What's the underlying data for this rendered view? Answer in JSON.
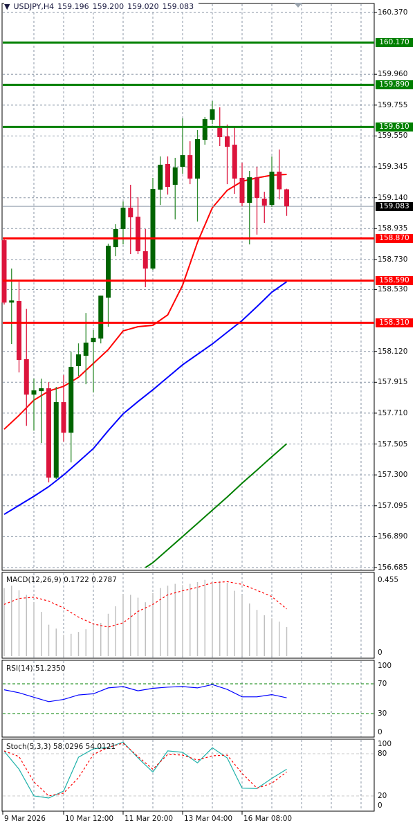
{
  "header": {
    "symbol": "USDJPY,H4",
    "open": "159.196",
    "high": "159.200",
    "low": "159.020",
    "close": "159.083",
    "menu_icon": "triangle-down-icon"
  },
  "colors": {
    "bull": "#006400",
    "bull_wick": "#2e8b2e",
    "bear": "#dc143c",
    "support": "#ff0000",
    "resistance": "#008000",
    "ma_fast": "#ff0000",
    "ma_mid": "#0000ff",
    "ma_slow": "#008000",
    "grid": "#8a96a6"
  },
  "chart_data": [
    {
      "type": "candlestick",
      "ylim": [
        156.685,
        160.37
      ],
      "grid": true,
      "y_ticks": [
        "160.370",
        "159.960",
        "159.755",
        "159.550",
        "159.345",
        "159.140",
        "158.935",
        "158.730",
        "158.530",
        "158.120",
        "157.915",
        "157.710",
        "157.505",
        "157.300",
        "157.095",
        "156.890",
        "156.685"
      ],
      "x_labels": [
        {
          "bar": 0,
          "label": "9 Mar 2026"
        },
        {
          "bar": 8,
          "label": "10 Mar 12:00"
        },
        {
          "bar": 16,
          "label": "11 Mar 20:00"
        },
        {
          "bar": 24,
          "label": "13 Mar 04:00"
        },
        {
          "bar": 32,
          "label": "16 Mar 08:00"
        }
      ],
      "candles_ohlc": [
        [
          158.858,
          158.867,
          158.431,
          158.444
        ],
        [
          158.444,
          158.67,
          158.169,
          158.458
        ],
        [
          158.454,
          158.582,
          157.98,
          158.063
        ],
        [
          158.068,
          158.403,
          157.626,
          157.833
        ],
        [
          157.833,
          157.939,
          157.594,
          157.861
        ],
        [
          157.856,
          157.939,
          157.512,
          157.875
        ],
        [
          157.875,
          157.916,
          157.25,
          157.282
        ],
        [
          157.282,
          157.884,
          157.273,
          157.783
        ],
        [
          157.783,
          157.962,
          157.521,
          157.58
        ],
        [
          157.58,
          158.118,
          157.383,
          158.017
        ],
        [
          158.022,
          158.173,
          157.957,
          158.1
        ],
        [
          158.091,
          158.375,
          157.902,
          158.178
        ],
        [
          158.182,
          158.261,
          157.847,
          158.21
        ],
        [
          158.205,
          158.49,
          158.173,
          158.49
        ],
        [
          158.477,
          158.835,
          158.284,
          158.821
        ],
        [
          158.812,
          158.964,
          158.752,
          158.932
        ],
        [
          158.932,
          159.115,
          158.83,
          159.074
        ],
        [
          159.074,
          159.226,
          158.766,
          159.01
        ],
        [
          159.014,
          159.143,
          158.766,
          158.785
        ],
        [
          158.785,
          158.932,
          158.546,
          158.67
        ],
        [
          158.67,
          159.272,
          158.66,
          159.198
        ],
        [
          159.194,
          159.414,
          159.092,
          159.359
        ],
        [
          159.364,
          159.414,
          159.161,
          159.212
        ],
        [
          159.226,
          159.405,
          158.996,
          159.341
        ],
        [
          159.345,
          159.667,
          159.299,
          159.423
        ],
        [
          159.423,
          159.515,
          159.23,
          159.267
        ],
        [
          159.267,
          159.589,
          158.982,
          159.529
        ],
        [
          159.524,
          159.676,
          159.492,
          159.662
        ],
        [
          159.658,
          159.782,
          159.63,
          159.727
        ],
        [
          159.603,
          159.74,
          159.483,
          159.543
        ],
        [
          159.547,
          159.626,
          159.23,
          159.478
        ],
        [
          159.492,
          159.607,
          159.166,
          159.267
        ],
        [
          159.272,
          159.373,
          159.083,
          159.106
        ],
        [
          159.106,
          159.318,
          158.83,
          159.276
        ],
        [
          159.276,
          159.345,
          158.895,
          159.138
        ],
        [
          159.134,
          159.18,
          158.973,
          159.088
        ],
        [
          159.092,
          159.414,
          159.079,
          159.313
        ],
        [
          159.313,
          159.46,
          159.129,
          159.196
        ],
        [
          159.196,
          159.2,
          159.02,
          159.083
        ]
      ],
      "moving_averages": [
        {
          "color": "#ff0000",
          "points": [
            [
              0,
              157.603
            ],
            [
              2,
              157.695
            ],
            [
              4,
              157.796
            ],
            [
              6,
              157.856
            ],
            [
              8,
              157.888
            ],
            [
              10,
              157.948
            ],
            [
              12,
              158.04
            ],
            [
              14,
              158.132
            ],
            [
              16,
              158.256
            ],
            [
              18,
              158.284
            ],
            [
              20,
              158.293
            ],
            [
              22,
              158.362
            ],
            [
              24,
              158.559
            ],
            [
              26,
              158.844
            ],
            [
              28,
              159.074
            ],
            [
              30,
              159.189
            ],
            [
              32,
              159.249
            ],
            [
              34,
              159.272
            ],
            [
              36,
              159.29
            ],
            [
              38,
              159.295
            ]
          ]
        },
        {
          "color": "#0000ff",
          "points": [
            [
              0,
              157.038
            ],
            [
              2,
              157.098
            ],
            [
              4,
              157.158
            ],
            [
              6,
              157.222
            ],
            [
              8,
              157.3
            ],
            [
              10,
              157.387
            ],
            [
              12,
              157.475
            ],
            [
              14,
              157.594
            ],
            [
              16,
              157.705
            ],
            [
              18,
              157.787
            ],
            [
              20,
              157.865
            ],
            [
              22,
              157.948
            ],
            [
              24,
              158.031
            ],
            [
              26,
              158.1
            ],
            [
              28,
              158.169
            ],
            [
              30,
              158.247
            ],
            [
              32,
              158.325
            ],
            [
              34,
              158.417
            ],
            [
              36,
              158.513
            ],
            [
              38,
              158.582
            ]
          ]
        },
        {
          "color": "#008000",
          "points": [
            [
              19,
              156.685
            ],
            [
              20,
              156.717
            ],
            [
              22,
              156.804
            ],
            [
              24,
              156.891
            ],
            [
              26,
              156.978
            ],
            [
              28,
              157.066
            ],
            [
              30,
              157.153
            ],
            [
              32,
              157.245
            ],
            [
              34,
              157.332
            ],
            [
              36,
              157.42
            ],
            [
              38,
              157.507
            ]
          ]
        }
      ],
      "levels": [
        {
          "price": 160.17,
          "label": "160.170",
          "color": "#008000"
        },
        {
          "price": 159.89,
          "label": "159.890",
          "color": "#008000"
        },
        {
          "price": 159.61,
          "label": "159.610",
          "color": "#008000"
        },
        {
          "price": 158.87,
          "label": "158.870",
          "color": "#ff0000"
        },
        {
          "price": 158.59,
          "label": "158.590",
          "color": "#ff0000"
        },
        {
          "price": 158.31,
          "label": "158.310",
          "color": "#ff0000"
        }
      ],
      "current_price": {
        "price": 159.083,
        "label": "159.083"
      }
    },
    {
      "type": "bar",
      "title": "MACD(12,26,9) 0.1722 0.2787",
      "ylim": [
        0,
        0.455
      ],
      "y_ticks": [
        "0.455",
        "0"
      ],
      "histogram": [
        0.403,
        0.417,
        0.39,
        0.363,
        0.319,
        0.262,
        0.186,
        0.163,
        0.126,
        0.132,
        0.143,
        0.159,
        0.19,
        0.197,
        0.251,
        0.295,
        0.367,
        0.363,
        0.346,
        0.319,
        0.373,
        0.403,
        0.417,
        0.428,
        0.421,
        0.428,
        0.439,
        0.452,
        0.444,
        0.444,
        0.435,
        0.387,
        0.36,
        0.312,
        0.274,
        0.242,
        0.224,
        0.204,
        0.172
      ],
      "signal": [
        [
          0,
          0.306
        ],
        [
          2,
          0.342
        ],
        [
          4,
          0.349
        ],
        [
          6,
          0.326
        ],
        [
          8,
          0.285
        ],
        [
          10,
          0.231
        ],
        [
          12,
          0.19
        ],
        [
          14,
          0.172
        ],
        [
          16,
          0.197
        ],
        [
          18,
          0.265
        ],
        [
          20,
          0.306
        ],
        [
          22,
          0.363
        ],
        [
          24,
          0.387
        ],
        [
          26,
          0.407
        ],
        [
          28,
          0.435
        ],
        [
          30,
          0.441
        ],
        [
          32,
          0.425
        ],
        [
          34,
          0.39
        ],
        [
          36,
          0.353
        ],
        [
          38,
          0.279
        ]
      ]
    },
    {
      "type": "line",
      "title": "RSI(14) 51.2350",
      "ylim": [
        0,
        100
      ],
      "y_ticks": [
        "100",
        "70",
        "30",
        "0"
      ],
      "levels": [
        70,
        30
      ],
      "values": [
        [
          0,
          62
        ],
        [
          2,
          58
        ],
        [
          4,
          52
        ],
        [
          6,
          46
        ],
        [
          8,
          49
        ],
        [
          10,
          55
        ],
        [
          12,
          56.6
        ],
        [
          14,
          64.5
        ],
        [
          16,
          66.3
        ],
        [
          18,
          60.6
        ],
        [
          20,
          64
        ],
        [
          22,
          65.5
        ],
        [
          24,
          66.3
        ],
        [
          26,
          64.5
        ],
        [
          28,
          69
        ],
        [
          30,
          62.5
        ],
        [
          32,
          52.5
        ],
        [
          34,
          52.5
        ],
        [
          36,
          55.5
        ],
        [
          38,
          51.2
        ]
      ]
    },
    {
      "type": "line",
      "title": "Stoch(5,3,3) 58.0296 54.0121",
      "ylim": [
        0,
        100
      ],
      "y_ticks": [
        "100",
        "80",
        "20",
        "0"
      ],
      "levels": [
        80,
        20
      ],
      "main": [
        [
          0,
          83.5
        ],
        [
          2,
          58
        ],
        [
          4,
          20
        ],
        [
          6,
          17
        ],
        [
          8,
          27
        ],
        [
          10,
          75
        ],
        [
          12,
          87
        ],
        [
          14,
          89
        ],
        [
          16,
          96.4
        ],
        [
          18,
          74
        ],
        [
          20,
          53.8
        ],
        [
          22,
          84
        ],
        [
          24,
          82
        ],
        [
          26,
          67
        ],
        [
          28,
          88.5
        ],
        [
          30,
          74
        ],
        [
          32,
          31
        ],
        [
          34,
          30.5
        ],
        [
          36,
          45
        ],
        [
          38,
          58
        ]
      ],
      "signal": [
        [
          0,
          84
        ],
        [
          2,
          76
        ],
        [
          4,
          40
        ],
        [
          6,
          20
        ],
        [
          8,
          24
        ],
        [
          10,
          46
        ],
        [
          12,
          79
        ],
        [
          14,
          89
        ],
        [
          16,
          95
        ],
        [
          18,
          76
        ],
        [
          20,
          58
        ],
        [
          22,
          79
        ],
        [
          24,
          78
        ],
        [
          26,
          71
        ],
        [
          28,
          77
        ],
        [
          30,
          78
        ],
        [
          32,
          52
        ],
        [
          34,
          31
        ],
        [
          36,
          38
        ],
        [
          38,
          54
        ]
      ]
    }
  ]
}
